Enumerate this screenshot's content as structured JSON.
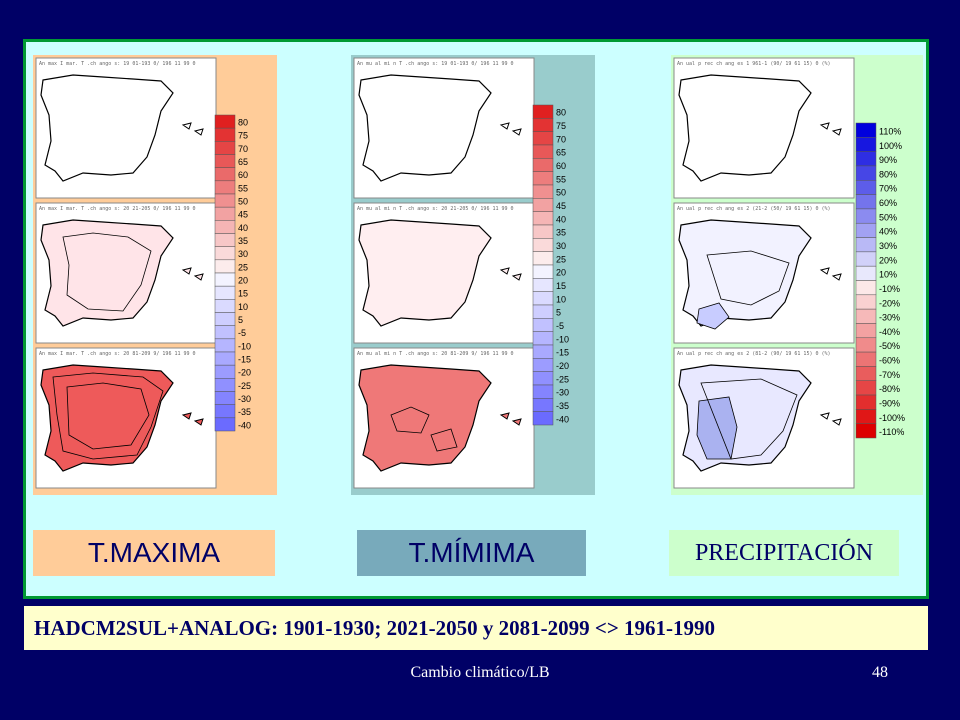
{
  "panels": [
    {
      "label": "T.MAXIMA",
      "bg": "#ffcc99",
      "header_texts": [
        "An max I mar. T .ch ango s: 19 01-193 0/ 196 11 99 0",
        "An max I mar. T .ch ango s: 20 21-205 0/ 196 11 99 0",
        "An max I mar. T .ch ango s: 20 81-209 9/ 196 11 99 0"
      ],
      "legend": [
        "80",
        "75",
        "70",
        "65",
        "60",
        "55",
        "50",
        "45",
        "40",
        "35",
        "30",
        "25",
        "20",
        "15",
        "10",
        "5",
        "-5",
        "-10",
        "-15",
        "-20",
        "-25",
        "-30",
        "-35",
        "-40"
      ]
    },
    {
      "label": "T.MÍMIMA",
      "bg": "#99cccc",
      "header_texts": [
        "An mu al mi n T .ch ango s: 19 01-193 0/ 196 11 99 0",
        "An mu al mi n T .ch ango s: 20 21-205 0/ 196 11 99 0",
        "An mu al mi n T .ch ango s: 20 81-209 9/ 196 11 99 0"
      ],
      "legend": [
        "80",
        "75",
        "70",
        "65",
        "60",
        "55",
        "50",
        "45",
        "40",
        "35",
        "30",
        "25",
        "20",
        "15",
        "10",
        "5",
        "-5",
        "-10",
        "-15",
        "-20",
        "-25",
        "-30",
        "-35",
        "-40"
      ]
    },
    {
      "label": "PRECIPITACIÓN",
      "bg": "#ccffcc",
      "header_texts": [
        "An ual p rec ch ang es 1 961-1 (90/ 19 61 15) 0 (%)",
        "An ual p rec ch ang es 2 (21-2 (50/ 19 61 15) 0 (%)",
        "An ual p rec ch ang es 2 (81-2 (90/ 19 61 15) 0 (%)"
      ],
      "legend": [
        "110%",
        "100%",
        "90%",
        "80%",
        "70%",
        "60%",
        "50%",
        "40%",
        "30%",
        "20%",
        "10%",
        "-10%",
        "-20%",
        "-30%",
        "-40%",
        "-50%",
        "-60%",
        "-70%",
        "-80%",
        "-90%",
        "-100%",
        "-110%"
      ]
    }
  ],
  "caption": "HADCM2SUL+ANALOG: 1901-1930; 2021-2050 y 2081-2099 <> 1961-1990",
  "footer": {
    "center": "Cambio climático/LB",
    "page": "48"
  }
}
